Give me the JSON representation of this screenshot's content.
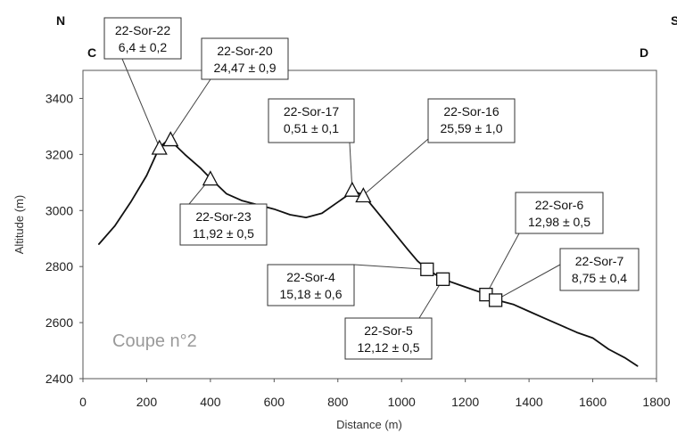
{
  "chart_data": {
    "type": "line",
    "title": "",
    "xlabel": "Distance (m)",
    "ylabel": "Altitude (m)",
    "xlim": [
      0,
      1800
    ],
    "ylim": [
      2400,
      3500
    ],
    "x_ticks": [
      "0",
      "200",
      "400",
      "600",
      "800",
      "1000",
      "1200",
      "1400",
      "1600",
      "1800"
    ],
    "y_ticks": [
      "2400",
      "2600",
      "2800",
      "3000",
      "3200",
      "3400"
    ],
    "grid": false,
    "corner_labels": {
      "north": "N",
      "south": "S",
      "left_end": "C",
      "right_end": "D"
    },
    "caption": "Coupe n°2",
    "series": [
      {
        "values": [
          [
            50,
            2880
          ],
          [
            100,
            2945
          ],
          [
            150,
            3030
          ],
          [
            200,
            3125
          ],
          [
            240,
            3225
          ],
          [
            270,
            3255
          ],
          [
            320,
            3200
          ],
          [
            370,
            3150
          ],
          [
            400,
            3115
          ],
          [
            450,
            3060
          ],
          [
            500,
            3035
          ],
          [
            550,
            3020
          ],
          [
            600,
            3005
          ],
          [
            650,
            2985
          ],
          [
            700,
            2975
          ],
          [
            750,
            2990
          ],
          [
            800,
            3030
          ],
          [
            850,
            3070
          ],
          [
            880,
            3055
          ],
          [
            920,
            3000
          ],
          [
            970,
            2930
          ],
          [
            1020,
            2860
          ],
          [
            1050,
            2820
          ],
          [
            1080,
            2790
          ],
          [
            1130,
            2755
          ],
          [
            1180,
            2735
          ],
          [
            1230,
            2715
          ],
          [
            1270,
            2700
          ],
          [
            1300,
            2680
          ],
          [
            1350,
            2665
          ],
          [
            1400,
            2640
          ],
          [
            1450,
            2615
          ],
          [
            1500,
            2590
          ],
          [
            1550,
            2565
          ],
          [
            1600,
            2545
          ],
          [
            1650,
            2505
          ],
          [
            1700,
            2475
          ],
          [
            1740,
            2445
          ]
        ]
      }
    ],
    "samples": [
      {
        "name": "22-Sor-22",
        "value": "6,4 ± 0,2",
        "x": 240,
        "y": 3225,
        "marker": "triangle"
      },
      {
        "name": "22-Sor-20",
        "value": "24,47 ± 0,9",
        "x": 275,
        "y": 3255,
        "marker": "triangle"
      },
      {
        "name": "22-Sor-23",
        "value": "11,92 ± 0,5",
        "x": 400,
        "y": 3115,
        "marker": "triangle"
      },
      {
        "name": "22-Sor-17",
        "value": "0,51 ± 0,1",
        "x": 845,
        "y": 3075,
        "marker": "triangle"
      },
      {
        "name": "22-Sor-16",
        "value": "25,59 ± 1,0",
        "x": 880,
        "y": 3055,
        "marker": "triangle"
      },
      {
        "name": "22-Sor-4",
        "value": "15,18 ± 0,6",
        "x": 1080,
        "y": 2790,
        "marker": "square"
      },
      {
        "name": "22-Sor-5",
        "value": "12,12 ± 0,5",
        "x": 1130,
        "y": 2755,
        "marker": "square"
      },
      {
        "name": "22-Sor-6",
        "value": "12,98 ± 0,5",
        "x": 1265,
        "y": 2700,
        "marker": "square"
      },
      {
        "name": "22-Sor-7",
        "value": "8,75 ± 0,4",
        "x": 1295,
        "y": 2680,
        "marker": "square"
      }
    ]
  }
}
